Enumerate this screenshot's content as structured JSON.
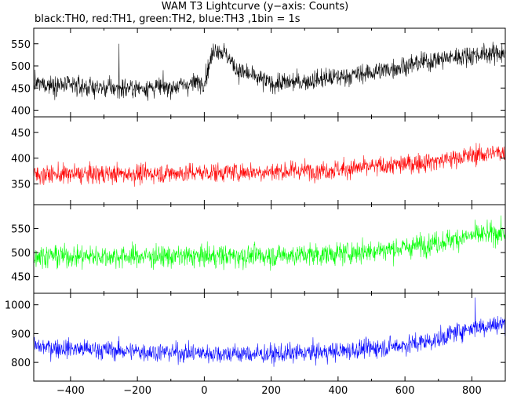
{
  "title": "WAM T3 Lightcurve (y−axis: Counts)",
  "subtitle": "black:TH0, red:TH1, green:TH2, blue:TH3 ,1bin = 1s",
  "chart_data": [
    {
      "type": "line",
      "name": "TH0",
      "color": "#000000",
      "xlim": [
        -510,
        900
      ],
      "ylim": [
        385,
        585
      ],
      "yticks": [
        400,
        450,
        500,
        550
      ],
      "x_ticks_shown": false,
      "grid": false,
      "approx_trend": {
        "x": [
          -510,
          -400,
          -300,
          -200,
          -100,
          0,
          30,
          60,
          100,
          200,
          300,
          400,
          500,
          600,
          700,
          800,
          900
        ],
        "mean": [
          460,
          455,
          450,
          450,
          452,
          465,
          540,
          530,
          490,
          460,
          465,
          475,
          485,
          500,
          515,
          525,
          530
        ],
        "noise": 20,
        "features": [
          {
            "x": -255,
            "value": 550
          }
        ]
      }
    },
    {
      "type": "line",
      "name": "TH1",
      "color": "#ff0000",
      "xlim": [
        -510,
        900
      ],
      "ylim": [
        310,
        480
      ],
      "yticks": [
        350,
        400,
        450
      ],
      "x_ticks_shown": false,
      "grid": false,
      "approx_trend": {
        "x": [
          -510,
          -200,
          0,
          200,
          400,
          600,
          700,
          800,
          900
        ],
        "mean": [
          368,
          370,
          372,
          374,
          378,
          388,
          395,
          405,
          412
        ],
        "noise": 17
      }
    },
    {
      "type": "line",
      "name": "TH2",
      "color": "#00ff00",
      "xlim": [
        -510,
        900
      ],
      "ylim": [
        415,
        600
      ],
      "yticks": [
        450,
        500,
        550
      ],
      "x_ticks_shown": false,
      "grid": false,
      "approx_trend": {
        "x": [
          -510,
          -200,
          0,
          200,
          400,
          600,
          700,
          800,
          900
        ],
        "mean": [
          493,
          492,
          492,
          494,
          497,
          510,
          522,
          535,
          542
        ],
        "noise": 21
      }
    },
    {
      "type": "line",
      "name": "TH3",
      "color": "#0000ff",
      "xlim": [
        -510,
        900
      ],
      "ylim": [
        735,
        1040
      ],
      "yticks": [
        800,
        900,
        1000
      ],
      "xticks": [
        -400,
        -200,
        0,
        200,
        400,
        600,
        800
      ],
      "grid": false,
      "approx_trend": {
        "x": [
          -510,
          -400,
          -200,
          0,
          200,
          400,
          600,
          700,
          750,
          800,
          900
        ],
        "mean": [
          855,
          848,
          838,
          832,
          828,
          838,
          860,
          880,
          905,
          920,
          935
        ],
        "noise": 30,
        "features": [
          {
            "x": 810,
            "value": 1025
          }
        ]
      }
    }
  ]
}
